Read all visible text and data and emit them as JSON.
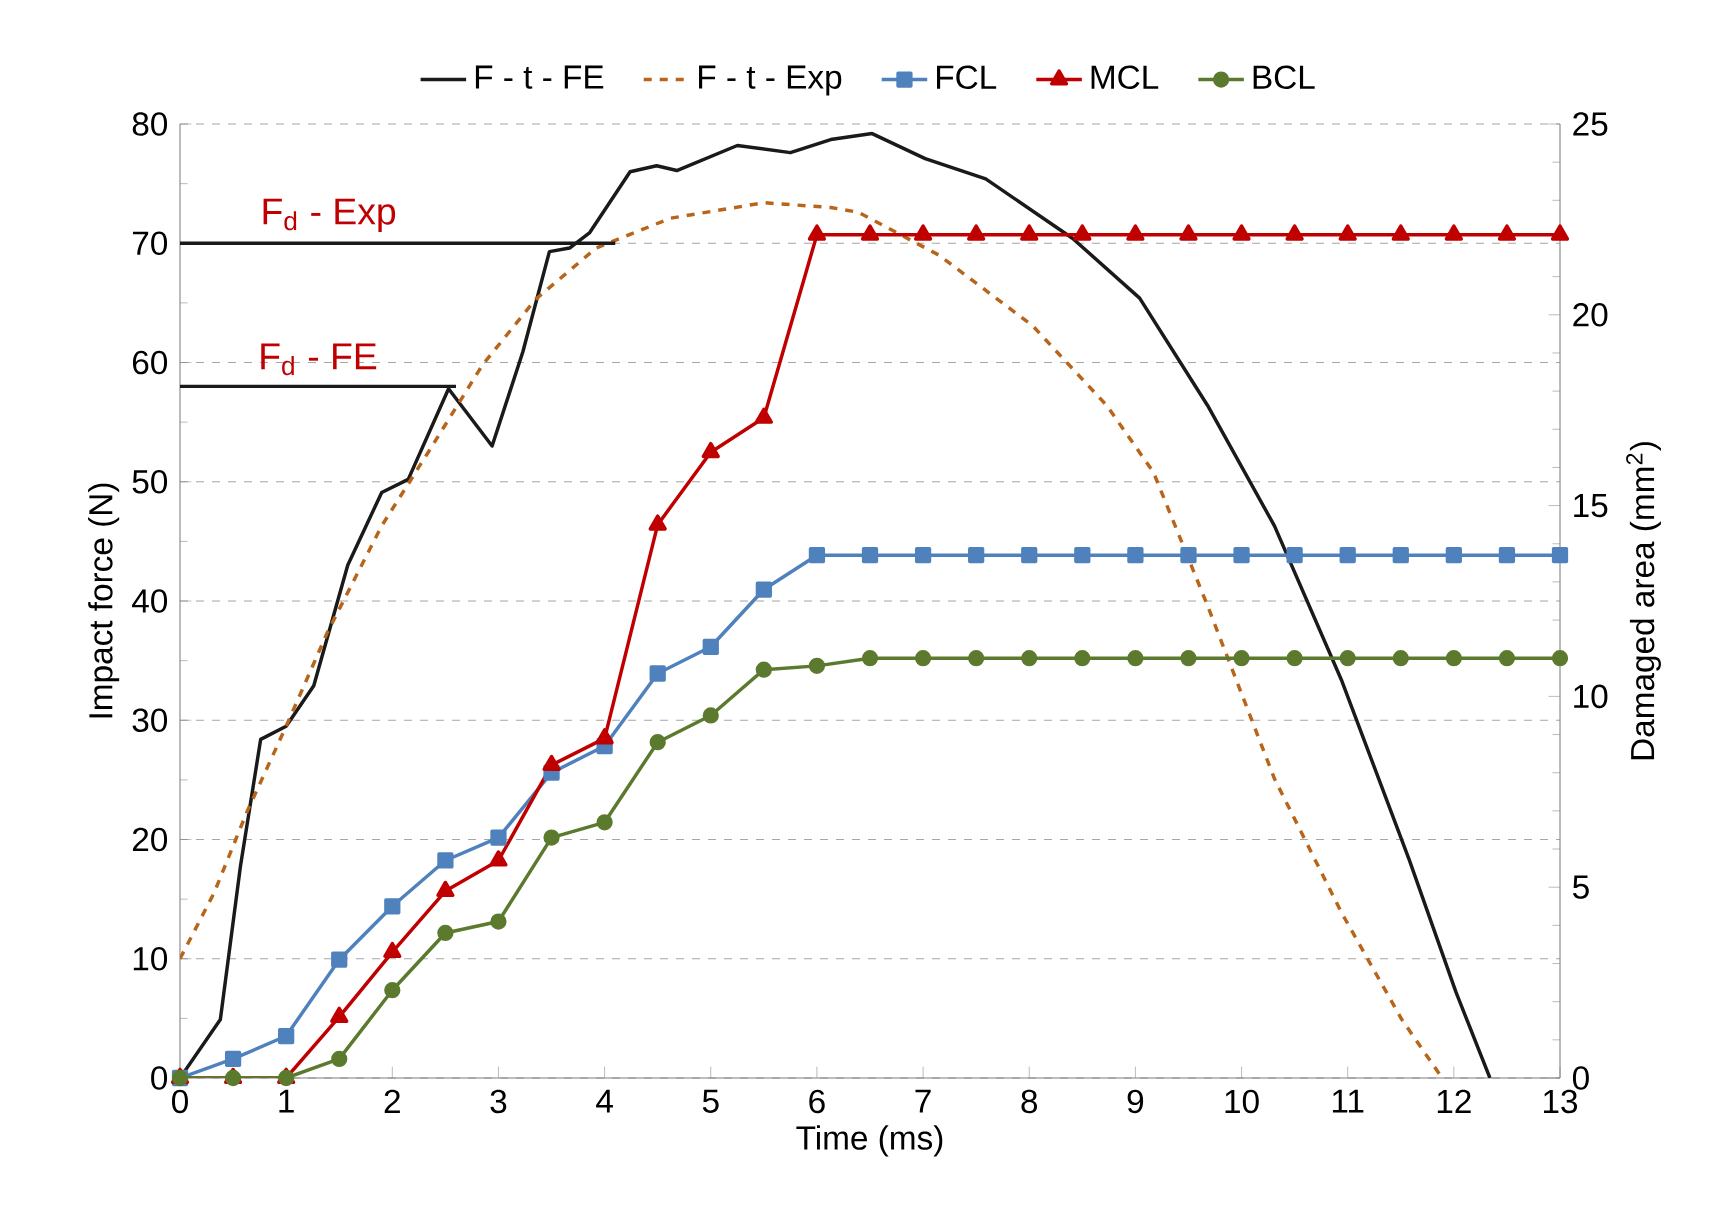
{
  "chart_data": {
    "type": "line",
    "xlabel": "Time (ms)",
    "ylabel": "Impact force (N)",
    "y2label": "Damaged area (mm$^{2}$)",
    "xlim": [
      0,
      13
    ],
    "xticks": [
      0,
      1,
      2,
      3,
      4,
      5,
      6,
      7,
      8,
      9,
      10,
      11,
      12,
      13
    ],
    "ylim": [
      0,
      80
    ],
    "yticks": [
      0,
      10,
      20,
      30,
      40,
      50,
      60,
      70,
      80
    ],
    "y2lim": [
      0,
      25
    ],
    "y2ticks": [
      0,
      5,
      10,
      15,
      20,
      25
    ],
    "grid": "y",
    "legend": "top",
    "series": [
      {
        "name": "F - t - FE",
        "color": "#1a1a1a",
        "marker": "none",
        "line_style": "solid",
        "x": [
          0,
          0.38,
          0.57,
          0.76,
          1.0,
          1.26,
          1.58,
          1.9,
          2.15,
          2.53,
          2.94,
          3.23,
          3.48,
          3.67,
          3.86,
          4.24,
          4.49,
          4.68,
          5.25,
          5.75,
          6.13,
          6.52,
          7.02,
          7.59,
          8.41,
          9.04,
          9.68,
          10.31,
          10.94,
          11.58,
          12.02,
          12.34
        ],
        "values": [
          0,
          4.9,
          17.8,
          28.4,
          29.5,
          32.9,
          43,
          49.1,
          50.2,
          57.8,
          53.0,
          60.9,
          69.3,
          69.6,
          70.9,
          76.0,
          76.5,
          76.1,
          78.2,
          77.6,
          78.7,
          79.2,
          77.1,
          75.4,
          70.4,
          65.4,
          56.4,
          46.3,
          33.4,
          18.3,
          7.2,
          0
        ]
      },
      {
        "name": "F - t - Exp",
        "color": "#b8651b",
        "marker": "none",
        "line_style": "dashed",
        "x": [
          0,
          0.32,
          0.63,
          1.0,
          1.39,
          1.9,
          2.34,
          2.85,
          3.35,
          3.92,
          4.62,
          5.5,
          6.13,
          6.39,
          7.15,
          8.03,
          8.73,
          9.17,
          9.68,
          10.31,
          10.94,
          11.51,
          11.89
        ],
        "values": [
          10.0,
          15.5,
          22.3,
          29.5,
          37.4,
          46.3,
          52.5,
          59.8,
          65.3,
          69.6,
          72.1,
          73.4,
          73.0,
          72.6,
          69.0,
          63.1,
          56.4,
          50.8,
          39.6,
          25.1,
          13.9,
          4.9,
          0
        ]
      },
      {
        "color": "#1a1a1a",
        "marker": "none",
        "line_style": "solid",
        "x": [
          0,
          4.1
        ],
        "values": [
          70,
          70
        ]
      },
      {
        "color": "#1a1a1a",
        "marker": "none",
        "line_style": "solid",
        "x": [
          0,
          2.6
        ],
        "values": [
          58,
          58
        ]
      },
      {
        "name": "FCL",
        "color": "#4f81bd",
        "marker": "square",
        "line_style": "solid",
        "axis": "y2",
        "x": [
          0,
          0.5,
          1,
          1.5,
          2,
          2.5,
          3,
          3.5,
          4,
          4.5,
          5,
          5.5,
          6,
          6.5,
          7,
          7.5,
          8,
          8.5,
          9,
          9.5,
          10,
          10.5,
          11,
          11.5,
          12,
          12.5,
          13
        ],
        "values": [
          0,
          0.5,
          1.1,
          3.1,
          4.5,
          5.7,
          6.3,
          8.0,
          8.7,
          10.6,
          11.3,
          12.8,
          13.7,
          13.7,
          13.7,
          13.7,
          13.7,
          13.7,
          13.7,
          13.7,
          13.7,
          13.7,
          13.7,
          13.7,
          13.7,
          13.7,
          13.7
        ]
      },
      {
        "name": "MCL",
        "color": "#c00000",
        "marker": "triangle",
        "line_style": "solid",
        "axis": "y2",
        "x": [
          0,
          0.5,
          1,
          1.5,
          2,
          2.5,
          3,
          3.5,
          4,
          4.5,
          5,
          5.5,
          6,
          6.5,
          7,
          7.5,
          8,
          8.5,
          9,
          9.5,
          10,
          10.5,
          11,
          11.5,
          12,
          12.5,
          13
        ],
        "values": [
          0,
          0,
          0,
          1.6,
          3.3,
          4.9,
          5.7,
          8.2,
          8.9,
          14.5,
          16.4,
          17.3,
          22.1,
          22.1,
          22.1,
          22.1,
          22.1,
          22.1,
          22.1,
          22.1,
          22.1,
          22.1,
          22.1,
          22.1,
          22.1,
          22.1,
          22.1
        ]
      },
      {
        "name": "BCL",
        "color": "#5b7a2e",
        "marker": "circle",
        "line_style": "solid",
        "axis": "y2",
        "x": [
          0,
          0.5,
          1,
          1.5,
          2,
          2.5,
          3,
          3.5,
          4,
          4.5,
          5,
          5.5,
          6,
          6.5,
          7,
          7.5,
          8,
          8.5,
          9,
          9.5,
          10,
          10.5,
          11,
          11.5,
          12,
          12.5,
          13
        ],
        "values": [
          0,
          0,
          0,
          0.5,
          2.3,
          3.8,
          4.1,
          6.3,
          6.7,
          8.8,
          9.5,
          10.7,
          10.8,
          11.0,
          11.0,
          11.0,
          11.0,
          11.0,
          11.0,
          11.0,
          11.0,
          11.0,
          11.0,
          11.0,
          11.0,
          11.0,
          11.0
        ]
      }
    ],
    "annotations": [
      {
        "text": "F$_{d}$ - Exp",
        "x": 1.4,
        "y": 70
      },
      {
        "text": "F$_{d}$ - FE",
        "x": 1.3,
        "y": 58
      }
    ]
  }
}
